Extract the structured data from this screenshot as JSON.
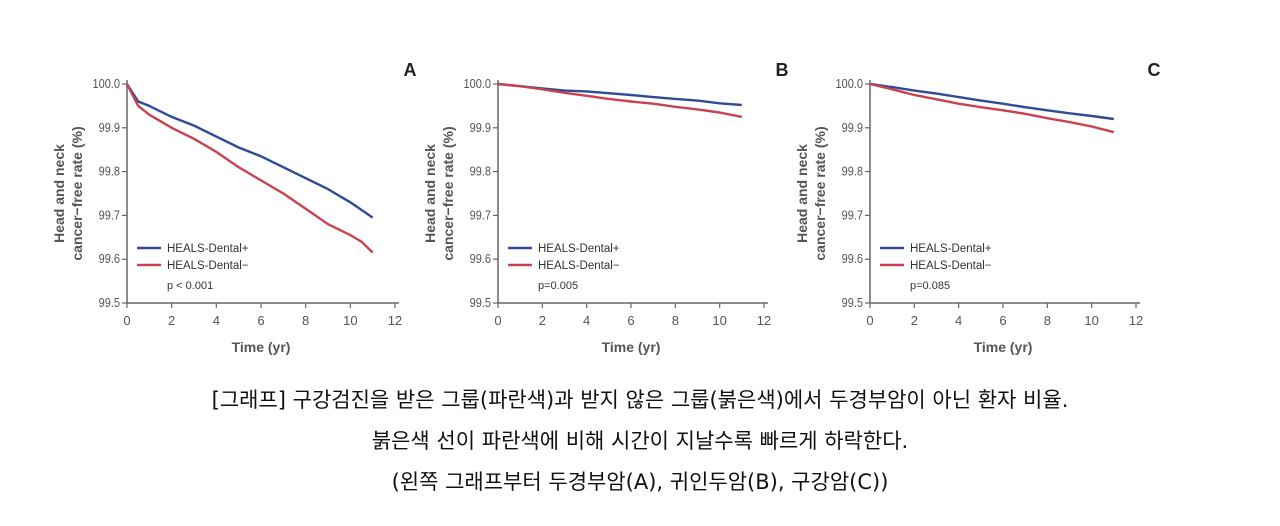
{
  "colors": {
    "positive": "#2f4b96",
    "negative": "#c8424f",
    "axis": "#666666",
    "tick_text": "#555555",
    "panel_letter": "#222222"
  },
  "chart_data": [
    {
      "type": "line",
      "panel_label": "A",
      "xlabel": "Time (yr)",
      "ylabel": [
        "Head and neck",
        "cancer−free rate (%)"
      ],
      "xlim": [
        0,
        12
      ],
      "ylim": [
        99.5,
        100.0
      ],
      "x_ticks": [
        "0",
        "2",
        "4",
        "6",
        "8",
        "10",
        "12"
      ],
      "y_ticks": [
        "99.5",
        "99.6",
        "99.7",
        "99.8",
        "99.9",
        "100.0"
      ],
      "grid": false,
      "legend_position": "bottom-left",
      "annotation": "p < 0.001",
      "series": [
        {
          "name": "HEALS-Dental+",
          "x": [
            0,
            0.5,
            1,
            2,
            3,
            4,
            5,
            6,
            7,
            8,
            9,
            10,
            11
          ],
          "y": [
            100.0,
            99.96,
            99.95,
            99.925,
            99.905,
            99.88,
            99.855,
            99.835,
            99.81,
            99.785,
            99.76,
            99.73,
            99.695
          ]
        },
        {
          "name": "HEALS-Dental−",
          "x": [
            0,
            0.5,
            1,
            2,
            3,
            4,
            5,
            6,
            7,
            8,
            9,
            10,
            10.5,
            11
          ],
          "y": [
            100.0,
            99.95,
            99.93,
            99.9,
            99.875,
            99.845,
            99.81,
            99.78,
            99.75,
            99.715,
            99.68,
            99.655,
            99.64,
            99.615
          ]
        }
      ]
    },
    {
      "type": "line",
      "panel_label": "B",
      "xlabel": "Time (yr)",
      "ylabel": [
        "Head and neck",
        "cancer−free rate (%)"
      ],
      "xlim": [
        0,
        12
      ],
      "ylim": [
        99.5,
        100.0
      ],
      "x_ticks": [
        "0",
        "2",
        "4",
        "6",
        "8",
        "10",
        "12"
      ],
      "y_ticks": [
        "99.5",
        "99.6",
        "99.7",
        "99.8",
        "99.9",
        "100.0"
      ],
      "grid": false,
      "legend_position": "bottom-left",
      "annotation": "p=0.005",
      "series": [
        {
          "name": "HEALS-Dental+",
          "x": [
            0,
            1,
            2,
            3,
            4,
            5,
            6,
            7,
            8,
            9,
            10,
            11
          ],
          "y": [
            100.0,
            99.995,
            99.99,
            99.985,
            99.983,
            99.979,
            99.975,
            99.97,
            99.966,
            99.962,
            99.956,
            99.952
          ]
        },
        {
          "name": "HEALS-Dental−",
          "x": [
            0,
            1,
            2,
            3,
            4,
            5,
            6,
            7,
            8,
            9,
            10,
            11
          ],
          "y": [
            100.0,
            99.995,
            99.988,
            99.98,
            99.973,
            99.966,
            99.96,
            99.955,
            99.948,
            99.942,
            99.935,
            99.925
          ]
        }
      ]
    },
    {
      "type": "line",
      "panel_label": "C",
      "xlabel": "Time (yr)",
      "ylabel": [
        "Head and neck",
        "cancer−free rate (%)"
      ],
      "xlim": [
        0,
        12
      ],
      "ylim": [
        99.5,
        100.0
      ],
      "x_ticks": [
        "0",
        "2",
        "4",
        "6",
        "8",
        "10",
        "12"
      ],
      "y_ticks": [
        "99.5",
        "99.6",
        "99.7",
        "99.8",
        "99.9",
        "100.0"
      ],
      "grid": false,
      "legend_position": "bottom-left",
      "annotation": "p=0.085",
      "series": [
        {
          "name": "HEALS-Dental+",
          "x": [
            0,
            1,
            2,
            3,
            4,
            5,
            6,
            7,
            8,
            9,
            10,
            11
          ],
          "y": [
            100.0,
            99.993,
            99.985,
            99.978,
            99.97,
            99.962,
            99.955,
            99.947,
            99.94,
            99.933,
            99.927,
            99.92
          ]
        },
        {
          "name": "HEALS-Dental−",
          "x": [
            0,
            1,
            2,
            3,
            4,
            5,
            6,
            7,
            8,
            9,
            10,
            11
          ],
          "y": [
            100.0,
            99.988,
            99.975,
            99.965,
            99.955,
            99.947,
            99.94,
            99.932,
            99.922,
            99.913,
            99.903,
            99.89
          ]
        }
      ]
    }
  ],
  "caption": {
    "line1": "[그래프] 구강검진을 받은 그룹(파란색)과 받지 않은 그룹(붉은색)에서 두경부암이 아닌 환자 비율.",
    "line2": "붉은색 선이 파란색에 비해 시간이 지날수록 빠르게 하락한다.",
    "line3": "(왼쪽 그래프부터 두경부암(A), 귀인두암(B), 구강암(C))"
  }
}
